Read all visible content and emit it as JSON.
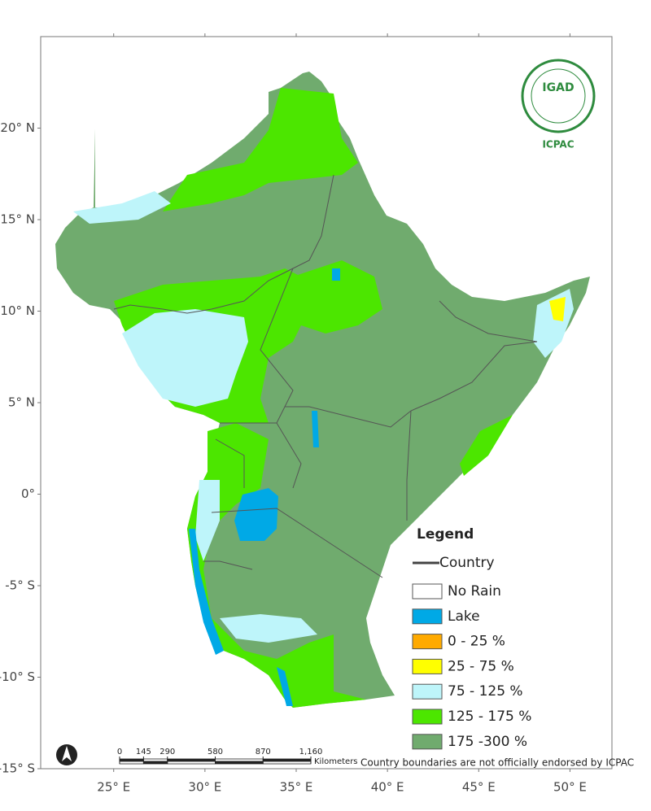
{
  "map": {
    "xlim": [
      21,
      52.3
    ],
    "ylim": [
      -15,
      25
    ],
    "lat_ticks": [
      {
        "value": 20,
        "label": "20° N"
      },
      {
        "value": 15,
        "label": "15° N"
      },
      {
        "value": 10,
        "label": "10° N"
      },
      {
        "value": 5,
        "label": "5° N"
      },
      {
        "value": 0,
        "label": "0°"
      },
      {
        "value": -5,
        "label": "-5° S"
      },
      {
        "value": -10,
        "label": "-10° S"
      },
      {
        "value": -15,
        "label": "-15° S"
      }
    ],
    "lon_ticks": [
      {
        "value": 25,
        "label": "25° E"
      },
      {
        "value": 30,
        "label": "30° E"
      },
      {
        "value": 35,
        "label": "35° E"
      },
      {
        "value": 40,
        "label": "40° E"
      },
      {
        "value": 45,
        "label": "45° E"
      },
      {
        "value": 50,
        "label": "50° E"
      }
    ]
  },
  "legend": {
    "title": "Legend",
    "country": "Country",
    "items": [
      {
        "label": "No Rain",
        "color": "#ffffff"
      },
      {
        "label": "Lake",
        "color": "#00a9e6"
      },
      {
        "label": "0 - 25 %",
        "color": "#ffaa00"
      },
      {
        "label": "25 - 75 %",
        "color": "#ffff00"
      },
      {
        "label": "75 - 125 %",
        "color": "#bef5fa"
      },
      {
        "label": "125 - 175 %",
        "color": "#4ce600"
      },
      {
        "label": "175 -300 %",
        "color": "#70ab6e"
      }
    ]
  },
  "scale_bar": {
    "ticks": [
      0,
      145,
      290,
      580,
      870,
      {
        "value": 1160,
        "label": "1,160"
      }
    ],
    "unit": "Kilometers"
  },
  "logo": {
    "name": "IGAD",
    "center": "ICPAC"
  },
  "note": "Country boundaries are not officially endorsed by ICPAC"
}
